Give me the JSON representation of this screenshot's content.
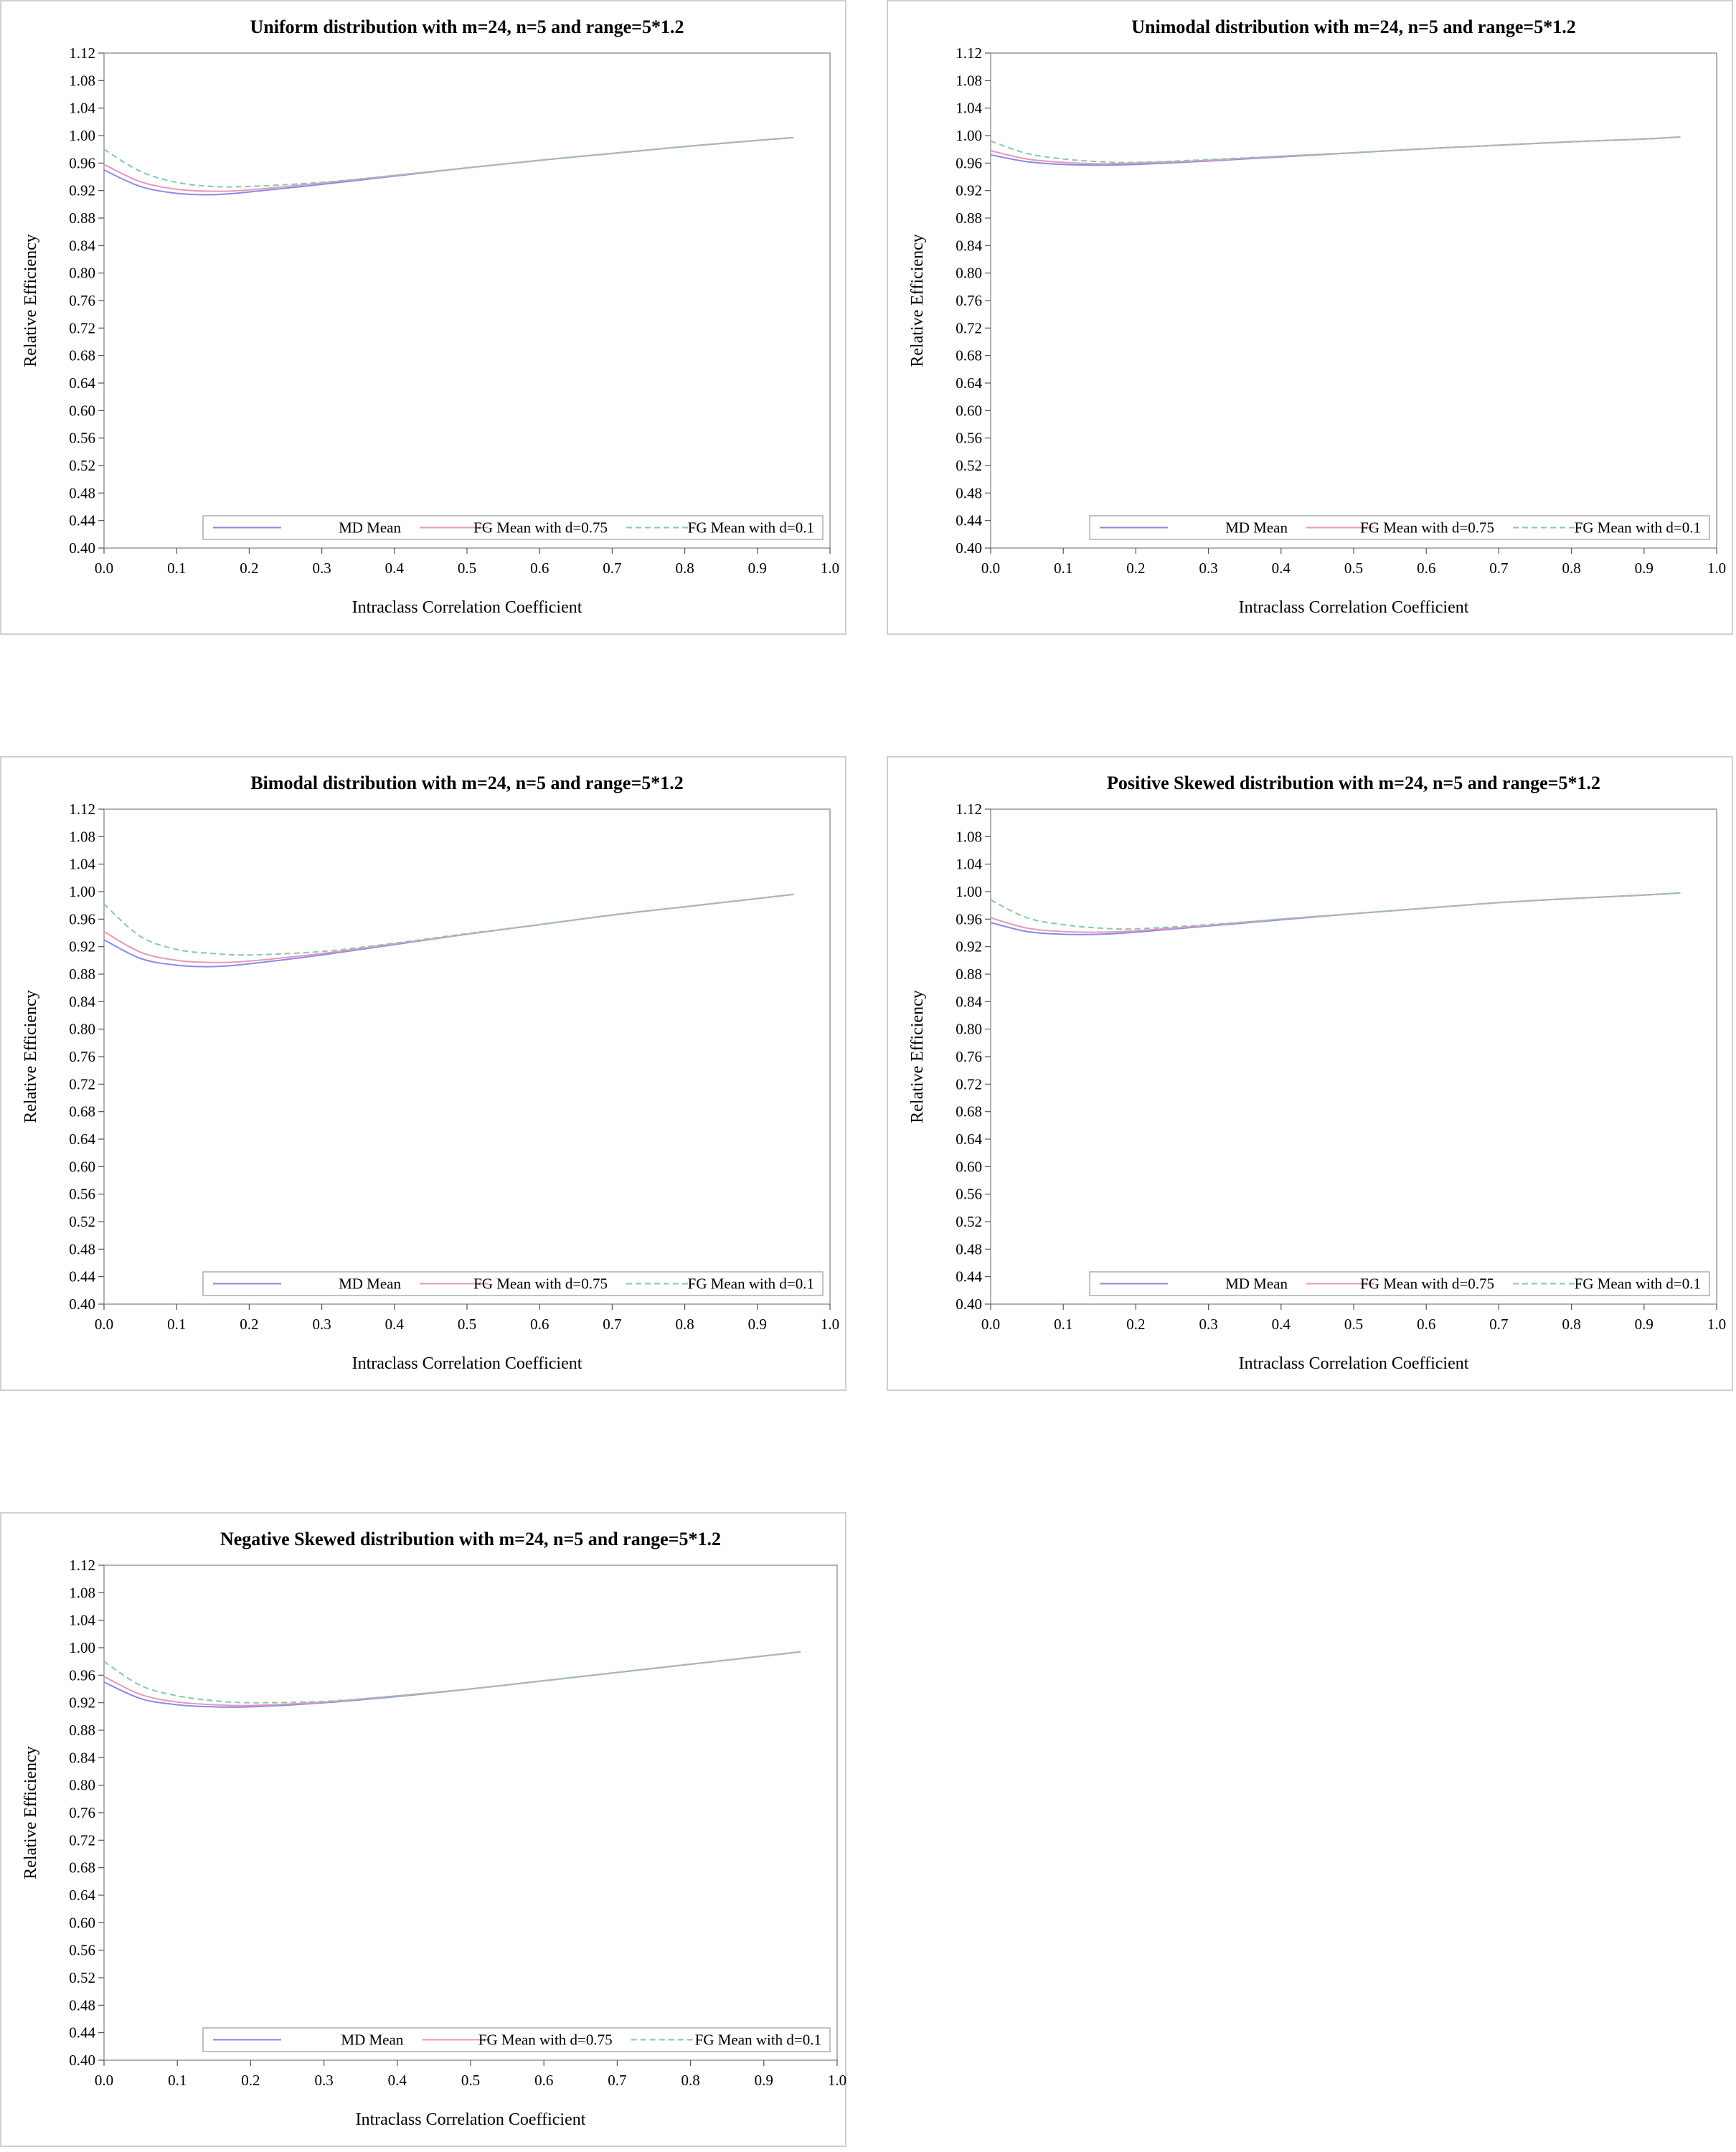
{
  "chart_data": [
    {
      "type": "line",
      "title": "Uniform distribution with m=24, n=5 and range=5*1.2",
      "xlabel": "Intraclass Correlation Coefficient",
      "ylabel": "Relative Efficiency",
      "xlim": [
        0.0,
        1.0
      ],
      "ylim": [
        0.4,
        1.12
      ],
      "xticks": [
        "0.0",
        "0.1",
        "0.2",
        "0.3",
        "0.4",
        "0.5",
        "0.6",
        "0.7",
        "0.8",
        "0.9",
        "1.0"
      ],
      "yticks": [
        "1.12",
        "1.08",
        "1.04",
        "1.00",
        "0.96",
        "0.92",
        "0.88",
        "0.84",
        "0.80",
        "0.76",
        "0.72",
        "0.68",
        "0.64",
        "0.60",
        "0.56",
        "0.52",
        "0.48",
        "0.44",
        "0.40"
      ],
      "x": [
        0.0,
        0.05,
        0.1,
        0.15,
        0.2,
        0.3,
        0.4,
        0.5,
        0.6,
        0.7,
        0.8,
        0.9,
        0.95
      ],
      "series": [
        {
          "name": "MD Mean",
          "values": [
            0.95,
            0.926,
            0.916,
            0.914,
            0.918,
            0.929,
            0.941,
            0.953,
            0.964,
            0.974,
            0.984,
            0.993,
            0.997
          ]
        },
        {
          "name": "FG Mean with d=0.75",
          "values": [
            0.958,
            0.933,
            0.922,
            0.919,
            0.921,
            0.931,
            0.942,
            0.953,
            0.964,
            0.974,
            0.984,
            0.993,
            0.997
          ]
        },
        {
          "name": "FG Mean with d=0.1",
          "values": [
            0.98,
            0.948,
            0.932,
            0.926,
            0.926,
            0.932,
            0.942,
            0.953,
            0.964,
            0.974,
            0.984,
            0.993,
            0.997
          ]
        }
      ],
      "legend": "bottom"
    },
    {
      "type": "line",
      "title": "Unimodal distribution with m=24, n=5 and range=5*1.2",
      "xlabel": "Intraclass Correlation Coefficient",
      "ylabel": "Relative Efficiency",
      "xlim": [
        0.0,
        1.0
      ],
      "ylim": [
        0.4,
        1.12
      ],
      "xticks": [
        "0.0",
        "0.1",
        "0.2",
        "0.3",
        "0.4",
        "0.5",
        "0.6",
        "0.7",
        "0.8",
        "0.9",
        "1.0"
      ],
      "yticks": [
        "1.12",
        "1.08",
        "1.04",
        "1.00",
        "0.96",
        "0.92",
        "0.88",
        "0.84",
        "0.80",
        "0.76",
        "0.72",
        "0.68",
        "0.64",
        "0.60",
        "0.56",
        "0.52",
        "0.48",
        "0.44",
        "0.40"
      ],
      "x": [
        0.0,
        0.05,
        0.1,
        0.15,
        0.2,
        0.3,
        0.4,
        0.5,
        0.6,
        0.7,
        0.8,
        0.9,
        0.95
      ],
      "series": [
        {
          "name": "MD Mean",
          "values": [
            0.972,
            0.962,
            0.958,
            0.957,
            0.958,
            0.963,
            0.969,
            0.975,
            0.981,
            0.986,
            0.991,
            0.995,
            0.998
          ]
        },
        {
          "name": "FG Mean with d=0.75",
          "values": [
            0.978,
            0.966,
            0.961,
            0.959,
            0.96,
            0.964,
            0.97,
            0.975,
            0.981,
            0.986,
            0.991,
            0.995,
            0.998
          ]
        },
        {
          "name": "FG Mean with d=0.1",
          "values": [
            0.992,
            0.974,
            0.966,
            0.962,
            0.961,
            0.965,
            0.97,
            0.975,
            0.981,
            0.986,
            0.991,
            0.995,
            0.998
          ]
        }
      ],
      "legend": "bottom"
    },
    {
      "type": "line",
      "title": "Bimodal distribution with m=24, n=5 and range=5*1.2",
      "xlabel": "Intraclass Correlation Coefficient",
      "ylabel": "Relative Efficiency",
      "xlim": [
        0.0,
        1.0
      ],
      "ylim": [
        0.4,
        1.12
      ],
      "xticks": [
        "0.0",
        "0.1",
        "0.2",
        "0.3",
        "0.4",
        "0.5",
        "0.6",
        "0.7",
        "0.8",
        "0.9",
        "1.0"
      ],
      "yticks": [
        "1.12",
        "1.08",
        "1.04",
        "1.00",
        "0.96",
        "0.92",
        "0.88",
        "0.84",
        "0.80",
        "0.76",
        "0.72",
        "0.68",
        "0.64",
        "0.60",
        "0.56",
        "0.52",
        "0.48",
        "0.44",
        "0.40"
      ],
      "x": [
        0.0,
        0.05,
        0.1,
        0.15,
        0.2,
        0.3,
        0.4,
        0.5,
        0.6,
        0.7,
        0.8,
        0.9,
        0.95
      ],
      "series": [
        {
          "name": "MD Mean",
          "values": [
            0.93,
            0.903,
            0.893,
            0.891,
            0.895,
            0.908,
            0.923,
            0.938,
            0.952,
            0.966,
            0.978,
            0.99,
            0.996
          ]
        },
        {
          "name": "FG Mean with d=0.75",
          "values": [
            0.942,
            0.912,
            0.9,
            0.897,
            0.899,
            0.91,
            0.924,
            0.938,
            0.952,
            0.966,
            0.978,
            0.99,
            0.996
          ]
        },
        {
          "name": "FG Mean with d=0.1",
          "values": [
            0.982,
            0.935,
            0.916,
            0.91,
            0.908,
            0.913,
            0.925,
            0.939,
            0.952,
            0.966,
            0.978,
            0.99,
            0.996
          ]
        }
      ],
      "legend": "bottom"
    },
    {
      "type": "line",
      "title": "Positive Skewed distribution with m=24, n=5 and range=5*1.2",
      "xlabel": "Intraclass Correlation Coefficient",
      "ylabel": "Relative Efficiency",
      "xlim": [
        0.0,
        1.0
      ],
      "ylim": [
        0.4,
        1.12
      ],
      "xticks": [
        "0.0",
        "0.1",
        "0.2",
        "0.3",
        "0.4",
        "0.5",
        "0.6",
        "0.7",
        "0.8",
        "0.9",
        "1.0"
      ],
      "yticks": [
        "1.12",
        "1.08",
        "1.04",
        "1.00",
        "0.96",
        "0.92",
        "0.88",
        "0.84",
        "0.80",
        "0.76",
        "0.72",
        "0.68",
        "0.64",
        "0.60",
        "0.56",
        "0.52",
        "0.48",
        "0.44",
        "0.40"
      ],
      "x": [
        0.0,
        0.05,
        0.1,
        0.15,
        0.2,
        0.3,
        0.4,
        0.5,
        0.6,
        0.7,
        0.8,
        0.9,
        0.95
      ],
      "series": [
        {
          "name": "MD Mean",
          "values": [
            0.955,
            0.942,
            0.938,
            0.938,
            0.941,
            0.95,
            0.959,
            0.968,
            0.976,
            0.984,
            0.99,
            0.995,
            0.998
          ]
        },
        {
          "name": "FG Mean with d=0.75",
          "values": [
            0.962,
            0.947,
            0.942,
            0.941,
            0.943,
            0.951,
            0.96,
            0.968,
            0.976,
            0.984,
            0.99,
            0.995,
            0.998
          ]
        },
        {
          "name": "FG Mean with d=0.1",
          "values": [
            0.988,
            0.962,
            0.952,
            0.947,
            0.946,
            0.952,
            0.96,
            0.968,
            0.976,
            0.984,
            0.99,
            0.995,
            0.998
          ]
        }
      ],
      "legend": "bottom"
    },
    {
      "type": "line",
      "title": "Negative Skewed distribution with m=24, n=5 and range=5*1.2",
      "xlabel": "Intraclass Correlation Coefficient",
      "ylabel": "Relative Efficiency",
      "xlim": [
        0.0,
        1.0
      ],
      "ylim": [
        0.4,
        1.12
      ],
      "xticks": [
        "0.0",
        "0.1",
        "0.2",
        "0.3",
        "0.4",
        "0.5",
        "0.6",
        "0.7",
        "0.8",
        "0.9",
        "1.0"
      ],
      "yticks": [
        "1.12",
        "1.08",
        "1.04",
        "1.00",
        "0.96",
        "0.92",
        "0.88",
        "0.84",
        "0.80",
        "0.76",
        "0.72",
        "0.68",
        "0.64",
        "0.60",
        "0.56",
        "0.52",
        "0.48",
        "0.44",
        "0.40"
      ],
      "x": [
        0.0,
        0.05,
        0.1,
        0.15,
        0.2,
        0.3,
        0.4,
        0.5,
        0.6,
        0.7,
        0.8,
        0.9,
        0.95
      ],
      "series": [
        {
          "name": "MD Mean",
          "values": [
            0.95,
            0.926,
            0.917,
            0.914,
            0.914,
            0.92,
            0.929,
            0.94,
            0.952,
            0.964,
            0.976,
            0.988,
            0.994
          ]
        },
        {
          "name": "FG Mean with d=0.75",
          "values": [
            0.958,
            0.932,
            0.921,
            0.917,
            0.916,
            0.921,
            0.93,
            0.94,
            0.952,
            0.964,
            0.976,
            0.988,
            0.994
          ]
        },
        {
          "name": "FG Mean with d=0.1",
          "values": [
            0.98,
            0.945,
            0.93,
            0.923,
            0.92,
            0.922,
            0.93,
            0.94,
            0.952,
            0.964,
            0.976,
            0.988,
            0.994
          ]
        }
      ],
      "legend": "bottom"
    }
  ],
  "colors": {
    "md_mean": "#8a8ae8",
    "fg_075": "#e898b8",
    "fg_01": "#88c8a8",
    "axis": "#999999",
    "frame": "#d0d0d0"
  }
}
